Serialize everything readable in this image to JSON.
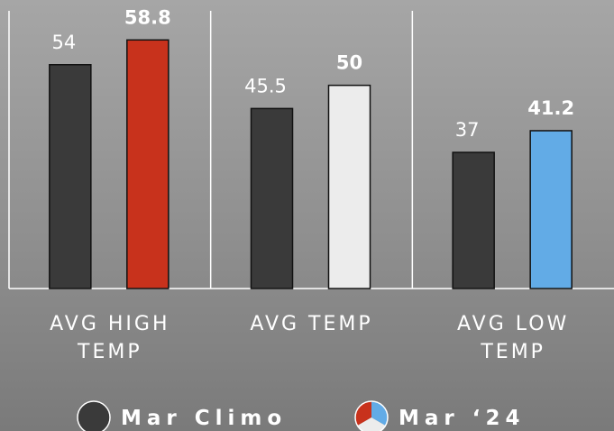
{
  "chart_data": {
    "type": "bar",
    "categories": [
      [
        "AVG HIGH",
        "TEMP"
      ],
      [
        "AVG TEMP"
      ],
      [
        "AVG LOW",
        "TEMP"
      ]
    ],
    "series": [
      {
        "name": "Mar Climo",
        "values": [
          54,
          45.5,
          37
        ],
        "colors": [
          "#3a3a3a",
          "#3a3a3a",
          "#3a3a3a"
        ]
      },
      {
        "name": "Mar ‘24",
        "values": [
          58.8,
          50,
          41.2
        ],
        "colors": [
          "#c8321c",
          "#ececec",
          "#62abe6"
        ]
      }
    ],
    "value_labels": [
      [
        "54",
        "45.5",
        "37"
      ],
      [
        "58.8",
        "50",
        "41.2"
      ]
    ],
    "grid": false,
    "legend_position": "bottom"
  }
}
